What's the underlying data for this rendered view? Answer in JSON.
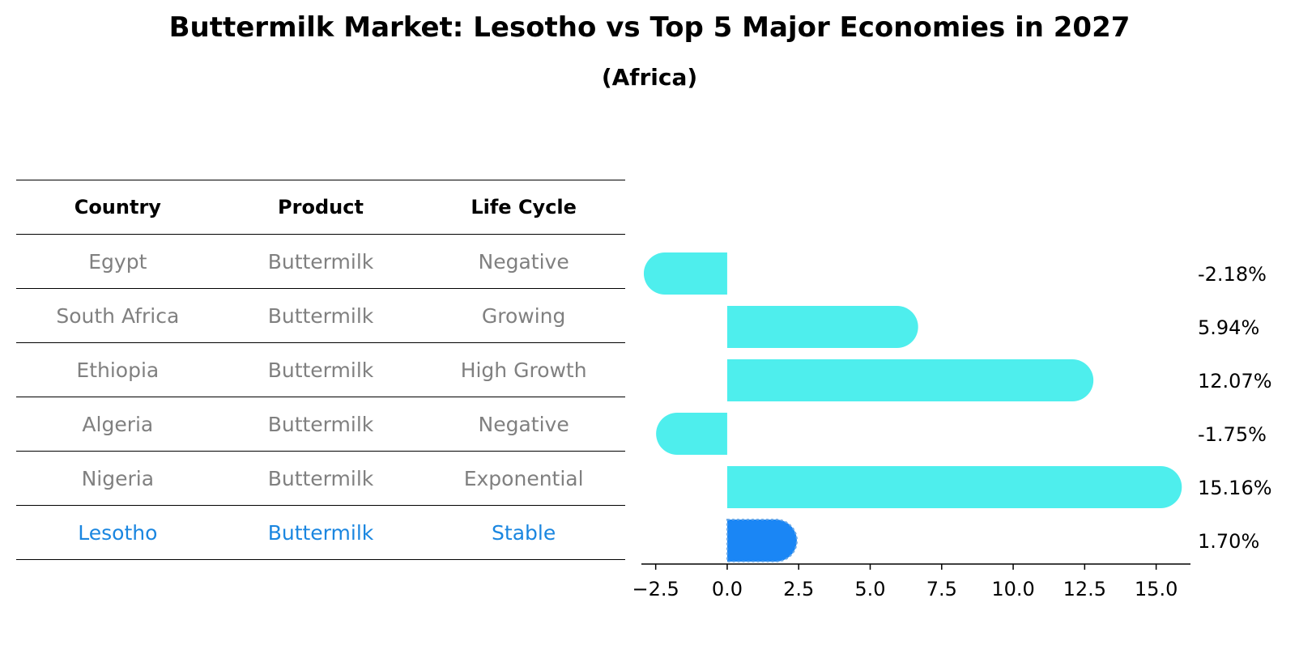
{
  "title": "Buttermilk Market: Lesotho vs Top 5 Major Economies in 2027",
  "subtitle": "(Africa)",
  "table": {
    "headers": [
      "Country",
      "Product",
      "Life Cycle"
    ],
    "rows": [
      [
        "Egypt",
        "Buttermilk",
        "Negative"
      ],
      [
        "South Africa",
        "Buttermilk",
        "Growing"
      ],
      [
        "Ethiopia",
        "Buttermilk",
        "High Growth"
      ],
      [
        "Algeria",
        "Buttermilk",
        "Negative"
      ],
      [
        "Nigeria",
        "Buttermilk",
        "Exponential"
      ],
      [
        "Lesotho",
        "Buttermilk",
        "Stable"
      ]
    ],
    "highlight_row": 5
  },
  "chart_data": {
    "type": "bar",
    "orientation": "horizontal",
    "categories": [
      "Egypt",
      "South Africa",
      "Ethiopia",
      "Algeria",
      "Nigeria",
      "Lesotho"
    ],
    "values": [
      -2.18,
      5.94,
      12.07,
      -1.75,
      15.16,
      1.7
    ],
    "value_labels": [
      "-2.18%",
      "5.94%",
      "12.07%",
      "-1.75%",
      "15.16%",
      "1.70%"
    ],
    "highlight": "Lesotho",
    "xlim": [
      -3.0,
      16.2
    ],
    "xticks": [
      -2.5,
      0.0,
      2.5,
      5.0,
      7.5,
      10.0,
      12.5,
      15.0
    ],
    "xtick_labels": [
      "−2.5",
      "0.0",
      "2.5",
      "5.0",
      "7.5",
      "10.0",
      "12.5",
      "15.0"
    ],
    "colors": {
      "bar": "#4eeeed",
      "highlight": "#1a86f5",
      "highlight_border": "#6aa9e8"
    }
  }
}
